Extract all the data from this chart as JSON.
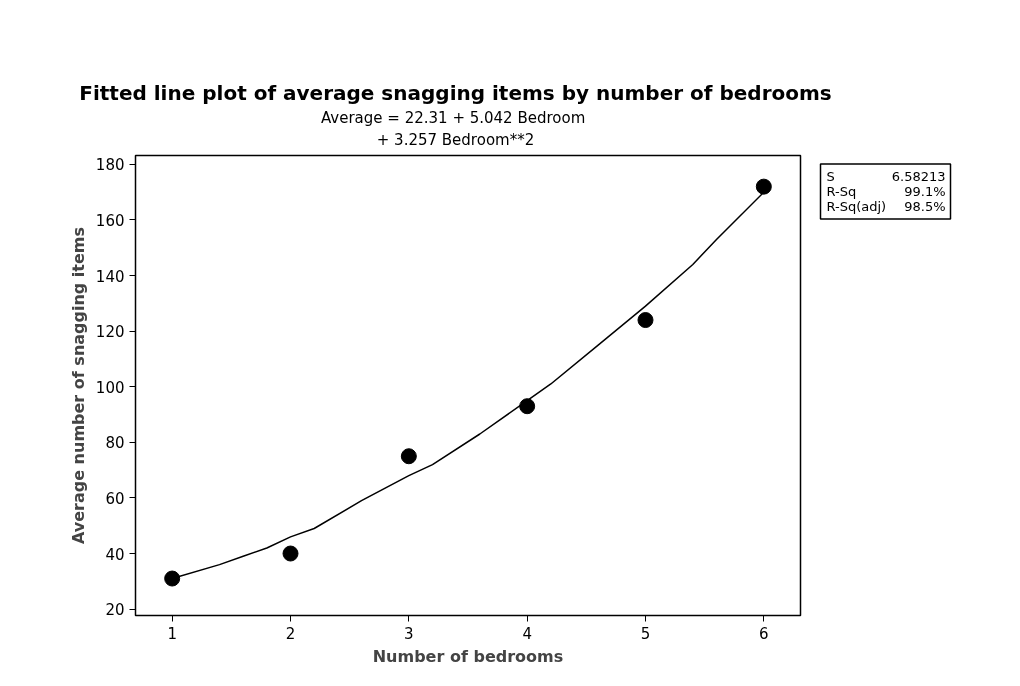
{
  "chart_data": {
    "type": "scatter",
    "title": "Fitted line plot of average snagging items by number of bedrooms",
    "subtitle": "Average =  22.31 + 5.042 Bedroom\n+ 3.257 Bedroom**2",
    "xlabel": "Number of bedrooms",
    "ylabel": "Average number of snagging items",
    "x": [
      1,
      2,
      3,
      4,
      5,
      6
    ],
    "series": [
      {
        "color": "#000000",
        "marker": "circle",
        "values": [
          31,
          40,
          75,
          93,
          124,
          172
        ]
      },
      {
        "type": "line",
        "color": "#000000",
        "x": [
          1,
          1.4,
          1.6,
          1.8,
          2,
          2.2,
          2.6,
          3,
          3.2,
          3.6,
          4,
          4.2,
          4.6,
          5,
          5.4,
          5.6,
          6
        ],
        "values": [
          31,
          36,
          39,
          42,
          46,
          49,
          59,
          68,
          72,
          83,
          95,
          101,
          115,
          129,
          144,
          153,
          170
        ]
      }
    ],
    "xlim": [
      0.69,
      6.31
    ],
    "ylim": [
      17.7,
      183.2
    ],
    "xticks": [
      1,
      2,
      3,
      4,
      5,
      6
    ],
    "yticks": [
      20,
      40,
      60,
      80,
      100,
      120,
      140,
      160,
      180
    ],
    "grid": false,
    "annotations": [
      "S",
      "6.58213",
      "R-Sq",
      "99.1%",
      "R-Sq(adj)",
      "98.5%"
    ]
  }
}
